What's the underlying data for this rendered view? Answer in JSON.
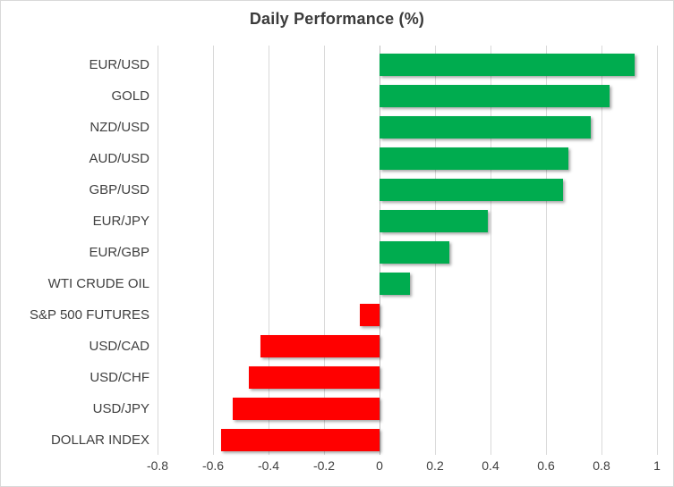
{
  "chart_data": {
    "type": "bar",
    "orientation": "horizontal",
    "title": "Daily Performance (%)",
    "categories": [
      "EUR/USD",
      "GOLD",
      "NZD/USD",
      "AUD/USD",
      "GBP/USD",
      "EUR/JPY",
      "EUR/GBP",
      "WTI CRUDE OIL",
      "S&P 500 FUTURES",
      "USD/CAD",
      "USD/CHF",
      "USD/JPY",
      "DOLLAR INDEX"
    ],
    "values": [
      0.92,
      0.83,
      0.76,
      0.68,
      0.66,
      0.39,
      0.25,
      0.11,
      -0.07,
      -0.43,
      -0.47,
      -0.53,
      -0.57
    ],
    "x_ticks": [
      -0.8,
      -0.6,
      -0.4,
      -0.2,
      0,
      0.2,
      0.4,
      0.6,
      0.8,
      1
    ],
    "x_tick_labels": [
      "-0.8",
      "-0.6",
      "-0.4",
      "-0.2",
      "0",
      "0.2",
      "0.4",
      "0.6",
      "0.8",
      "1"
    ],
    "xlim": [
      -0.8,
      1.0
    ],
    "grid": true,
    "legend": "none",
    "colors": {
      "positive_bar": "#00AC4F",
      "negative_bar": "#FF0000",
      "gridline": "#D9D9D9",
      "zero_line": "#BFBFBF",
      "title_text": "#3B3B3B",
      "axis_text": "#404040"
    }
  }
}
